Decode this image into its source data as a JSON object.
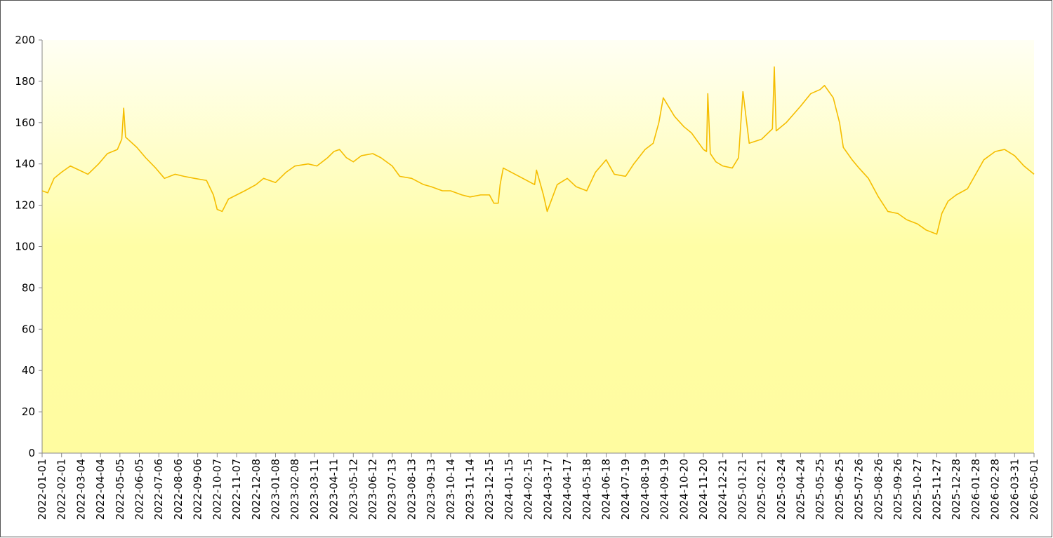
{
  "chart_data": {
    "type": "line",
    "x": [
      "2022-01-01",
      "2022-01-10",
      "2022-01-20",
      "2022-02-01",
      "2022-02-15",
      "2022-03-01",
      "2022-03-15",
      "2022-04-01",
      "2022-04-15",
      "2022-05-01",
      "2022-05-08",
      "2022-05-11",
      "2022-05-14",
      "2022-06-01",
      "2022-06-15",
      "2022-07-01",
      "2022-07-15",
      "2022-08-01",
      "2022-08-15",
      "2022-09-01",
      "2022-09-20",
      "2022-10-01",
      "2022-10-07",
      "2022-10-15",
      "2022-10-25",
      "2022-11-07",
      "2022-11-20",
      "2022-12-08",
      "2022-12-20",
      "2023-01-08",
      "2023-01-25",
      "2023-02-08",
      "2023-03-01",
      "2023-03-15",
      "2023-04-01",
      "2023-04-11",
      "2023-04-20",
      "2023-05-01",
      "2023-05-12",
      "2023-05-25",
      "2023-06-12",
      "2023-06-25",
      "2023-07-13",
      "2023-07-25",
      "2023-08-13",
      "2023-09-01",
      "2023-09-13",
      "2023-10-01",
      "2023-10-14",
      "2023-11-01",
      "2023-11-14",
      "2023-12-01",
      "2023-12-15",
      "2023-12-22",
      "2023-12-29",
      "2024-01-01",
      "2024-01-06",
      "2024-02-25",
      "2024-02-28",
      "2024-03-10",
      "2024-03-16",
      "2024-04-01",
      "2024-04-17",
      "2024-05-01",
      "2024-05-18",
      "2024-06-01",
      "2024-06-18",
      "2024-07-01",
      "2024-07-19",
      "2024-08-01",
      "2024-08-19",
      "2024-09-01",
      "2024-09-10",
      "2024-09-17",
      "2024-10-05",
      "2024-10-20",
      "2024-11-01",
      "2024-11-20",
      "2024-11-25",
      "2024-11-27",
      "2024-12-01",
      "2024-12-10",
      "2024-12-21",
      "2025-01-05",
      "2025-01-15",
      "2025-01-22",
      "2025-02-01",
      "2025-02-21",
      "2025-03-10",
      "2025-03-13",
      "2025-03-16",
      "2025-04-01",
      "2025-04-24",
      "2025-05-10",
      "2025-05-25",
      "2025-06-01",
      "2025-06-15",
      "2025-06-25",
      "2025-07-01",
      "2025-07-15",
      "2025-07-26",
      "2025-08-10",
      "2025-08-26",
      "2025-09-10",
      "2025-09-26",
      "2025-10-10",
      "2025-10-27",
      "2025-11-10",
      "2025-11-27",
      "2025-12-05",
      "2025-12-15",
      "2025-12-28",
      "2026-01-15",
      "2026-01-28",
      "2026-02-10",
      "2026-02-28",
      "2026-03-15",
      "2026-03-31",
      "2026-04-15",
      "2026-05-01"
    ],
    "series": [
      {
        "color": "#f5bd00",
        "values": [
          127,
          126,
          133,
          136,
          139,
          137,
          135,
          140,
          145,
          147,
          152,
          167,
          153,
          148,
          143,
          138,
          133,
          135,
          134,
          133,
          132,
          125,
          118,
          117,
          123,
          125,
          127,
          130,
          133,
          131,
          136,
          139,
          140,
          139,
          143,
          146,
          147,
          143,
          141,
          144,
          145,
          143,
          139,
          134,
          133,
          130,
          129,
          127,
          127,
          125,
          124,
          125,
          125,
          121,
          121,
          130,
          138,
          130,
          137,
          125,
          117,
          130,
          133,
          129,
          127,
          136,
          142,
          135,
          134,
          140,
          147,
          150,
          160,
          172,
          163,
          158,
          155,
          147,
          146,
          174,
          145,
          141,
          139,
          138,
          143,
          175,
          150,
          152,
          157,
          187,
          156,
          160,
          168,
          174,
          176,
          178,
          172,
          160,
          148,
          142,
          138,
          133,
          124,
          117,
          116,
          113,
          111,
          108,
          106,
          116,
          122,
          125,
          128,
          135,
          142,
          146,
          147,
          144,
          139,
          135
        ]
      }
    ],
    "xlim": [
      "2022-01-01",
      "2026-05-01"
    ],
    "xticks": [
      "2022-01-01",
      "2022-02-01",
      "2022-03-04",
      "2022-04-04",
      "2022-05-05",
      "2022-06-05",
      "2022-07-06",
      "2022-08-06",
      "2022-09-06",
      "2022-10-07",
      "2022-11-07",
      "2022-12-08",
      "2023-01-08",
      "2023-02-08",
      "2023-03-11",
      "2023-04-11",
      "2023-05-12",
      "2023-06-12",
      "2023-07-13",
      "2023-08-13",
      "2023-09-13",
      "2023-10-14",
      "2023-11-14",
      "2023-12-15",
      "2024-01-15",
      "2024-02-15",
      "2024-03-17",
      "2024-04-17",
      "2024-05-18",
      "2024-06-18",
      "2024-07-19",
      "2024-08-19",
      "2024-09-19",
      "2024-10-20",
      "2024-11-20",
      "2024-12-21",
      "2025-01-21",
      "2025-02-21",
      "2025-03-24",
      "2025-04-24",
      "2025-05-25",
      "2025-06-25",
      "2025-07-26",
      "2025-08-26",
      "2025-09-26",
      "2025-10-27",
      "2025-11-27",
      "2025-12-28",
      "2026-01-28",
      "2026-02-28",
      "2026-03-31",
      "2026-05-01"
    ],
    "ylim": [
      0,
      200
    ],
    "yticks": [
      0,
      20,
      40,
      60,
      80,
      100,
      120,
      140,
      160,
      180,
      200
    ],
    "grid": false
  }
}
